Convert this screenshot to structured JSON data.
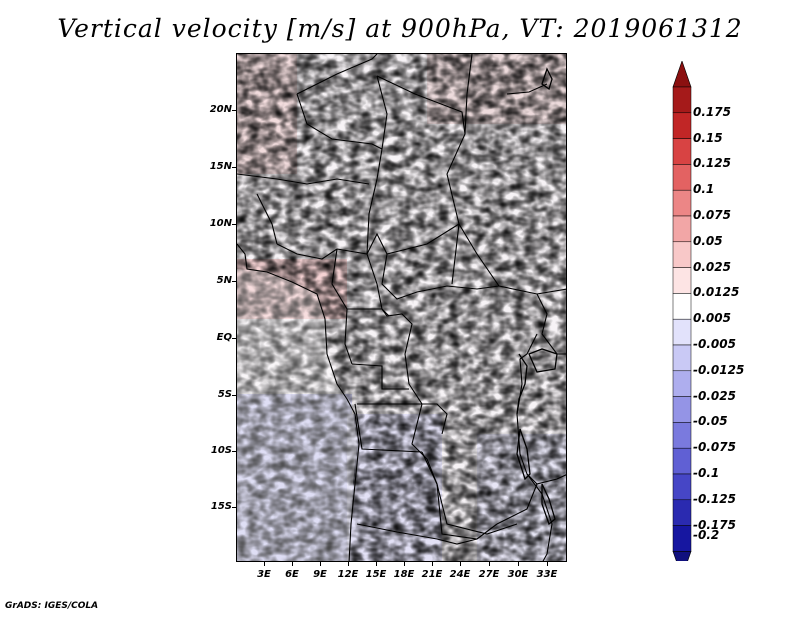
{
  "title": "Vertical velocity [m/s] at 900hPa, VT: 2019061312",
  "footer": "GrADS: IGES/COLA",
  "map": {
    "region": "Central Africa",
    "lat_labels": [
      "20N",
      "15N",
      "10N",
      "5N",
      "EQ",
      "5S",
      "10S",
      "15S"
    ],
    "lon_labels": [
      "3E",
      "6E",
      "9E",
      "12E",
      "15E",
      "18E",
      "21E",
      "24E",
      "27E",
      "30E",
      "33E"
    ]
  },
  "colorbar": {
    "labels": [
      "0.175",
      "0.15",
      "0.125",
      "0.1",
      "0.075",
      "0.05",
      "0.025",
      "0.0125",
      "0.005",
      "-0.005",
      "-0.0125",
      "-0.025",
      "-0.05",
      "-0.075",
      "-0.1",
      "-0.125",
      "-0.175",
      "-0.2"
    ],
    "colors": [
      "#a51a1a",
      "#c12626",
      "#d84343",
      "#e36262",
      "#ec8686",
      "#f2a6a6",
      "#f8c8c8",
      "#fde4e4",
      "#ffffff",
      "#e2e2fb",
      "#c9c9f5",
      "#aeaeee",
      "#9494e6",
      "#7a7ade",
      "#6060d4",
      "#4646c6",
      "#2a2ab0",
      "#1616a0"
    ],
    "top_arrow_color": "#8b1010",
    "bottom_arrow_color": "#10107e"
  }
}
